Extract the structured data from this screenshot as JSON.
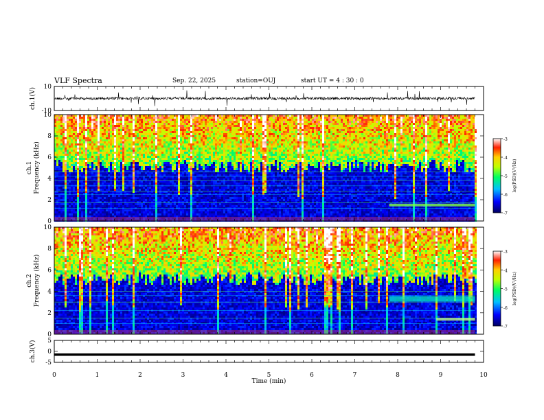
{
  "header": {
    "title": "VLF Spectra",
    "date": "Sep. 22, 2025",
    "station": "station=OUJ",
    "start_ut": "start UT =  4 : 30 : 0"
  },
  "chart_data": [
    {
      "type": "line",
      "panel": "ch1-waveform",
      "ylabel": "ch.1(V)",
      "ylim": [
        -10,
        10
      ],
      "yticks": [
        "10",
        "-10"
      ],
      "xlim": [
        0,
        10
      ],
      "baseline": 0,
      "trace_end_min": 9.8
    },
    {
      "type": "heatmap",
      "panel": "ch1-spectrogram",
      "ylabel": "ch.1 Frequency (kHz)",
      "ylabel_lines": [
        "ch.1",
        "Frequency (kHz)"
      ],
      "ylim": [
        0,
        10
      ],
      "yticks": [
        "0",
        "2",
        "4",
        "6",
        "8",
        "10"
      ],
      "xlim": [
        0,
        10
      ],
      "colorbar": {
        "label": "log(PSD)(V²/Hz)",
        "range": [
          -7,
          -3
        ],
        "ticks": [
          "-3",
          "-4",
          "-5",
          "-6",
          "-7"
        ]
      },
      "data_end_min": 9.8
    },
    {
      "type": "heatmap",
      "panel": "ch2-spectrogram",
      "ylabel": "ch.2 Frequency (kHz)",
      "ylabel_lines": [
        "ch.2",
        "Frequency (kHz)"
      ],
      "ylim": [
        0,
        10
      ],
      "yticks": [
        "0",
        "2",
        "4",
        "6",
        "8",
        "10"
      ],
      "xlim": [
        0,
        10
      ],
      "colorbar": {
        "label": "log(PSD)(V²/Hz)",
        "range": [
          -7,
          -3
        ],
        "ticks": [
          "-3",
          "-4",
          "-5",
          "-6",
          "-7"
        ]
      },
      "data_end_min": 9.8
    },
    {
      "type": "line",
      "panel": "ch3-waveform",
      "ylabel": "ch.3(V)",
      "ylim": [
        -5,
        5
      ],
      "yticks": [
        "5",
        "0",
        "-5"
      ],
      "xlim": [
        0,
        10
      ],
      "baseline": -1.5,
      "trace_end_min": 9.8
    }
  ],
  "xaxis": {
    "label": "Time (min)",
    "ticks": [
      "0",
      "1",
      "2",
      "3",
      "4",
      "5",
      "6",
      "7",
      "8",
      "9",
      "10"
    ]
  },
  "colors": {
    "axis": "#000000",
    "trace": "#000000",
    "background": "#ffffff"
  }
}
